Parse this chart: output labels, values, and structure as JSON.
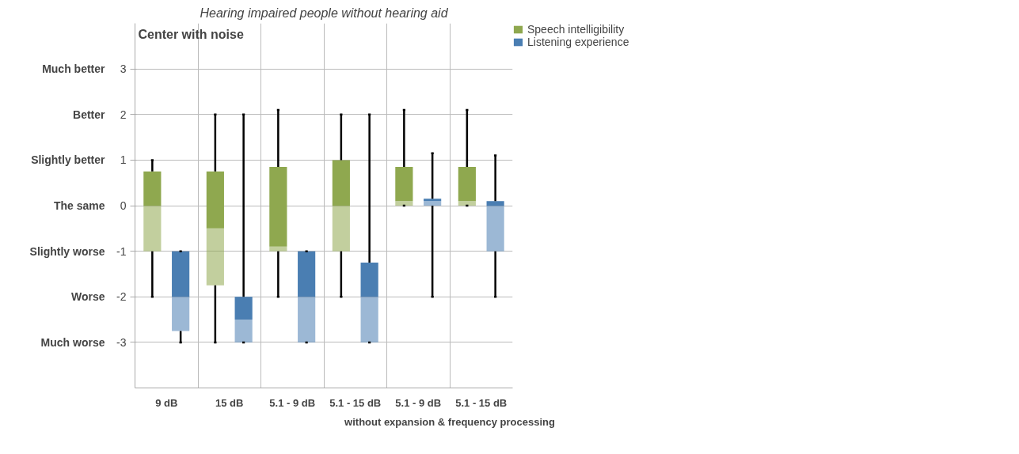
{
  "chart_data": {
    "type": "box",
    "title": "Center with noise",
    "subtitle": "Hearing impaired people without hearing aid",
    "categories": [
      "9 dB",
      "15 dB",
      "5.1 - 9 dB",
      "5.1 - 15 dB",
      "5.1 - 9 dB",
      "5.1 - 15 dB"
    ],
    "series": [
      {
        "name": "Speech intelligibility",
        "color": "#8fa84f",
        "boxes": [
          {
            "low": -2,
            "q1": -1,
            "median": 0,
            "q3": 0.75,
            "high": 1
          },
          {
            "low": -3,
            "q1": -1.75,
            "median": -0.5,
            "q3": 0.75,
            "high": 2
          },
          {
            "low": -2,
            "q1": -1,
            "median": -0.9,
            "q3": 0.85,
            "high": 2.1
          },
          {
            "low": -2,
            "q1": -1,
            "median": 0,
            "q3": 1,
            "high": 2
          },
          {
            "low": 0,
            "q1": 0,
            "median": 0.1,
            "q3": 0.85,
            "high": 2.1
          },
          {
            "low": 0,
            "q1": 0,
            "median": 0.1,
            "q3": 0.85,
            "high": 2.1
          }
        ]
      },
      {
        "name": "Listening experience",
        "color": "#4a7eb2",
        "boxes": [
          {
            "low": -3,
            "q1": -2.75,
            "median": -2,
            "q3": -1,
            "high": -1
          },
          {
            "low": -3,
            "q1": -3,
            "median": -2.5,
            "q3": -2,
            "high": 2
          },
          {
            "low": -3,
            "q1": -3,
            "median": -2,
            "q3": -1,
            "high": -1
          },
          {
            "low": -3,
            "q1": -3,
            "median": -2,
            "q3": -1.25,
            "high": 2
          },
          {
            "low": -2,
            "q1": 0,
            "median": 0.1,
            "q3": 0.15,
            "high": 1.15
          },
          {
            "low": -2,
            "q1": -1,
            "median": 0,
            "q3": 0.1,
            "high": 1.1
          }
        ]
      }
    ],
    "ylim": [
      -4,
      4
    ],
    "yticks": [
      -3,
      -2,
      -1,
      0,
      1,
      2,
      3
    ],
    "grid": true,
    "legend": "top right",
    "annotations": [
      "Much worse",
      "Worse",
      "Slightly worse",
      "The same",
      "Slightly better",
      "Better",
      "Much better",
      "without expansion & frequency processing"
    ]
  }
}
